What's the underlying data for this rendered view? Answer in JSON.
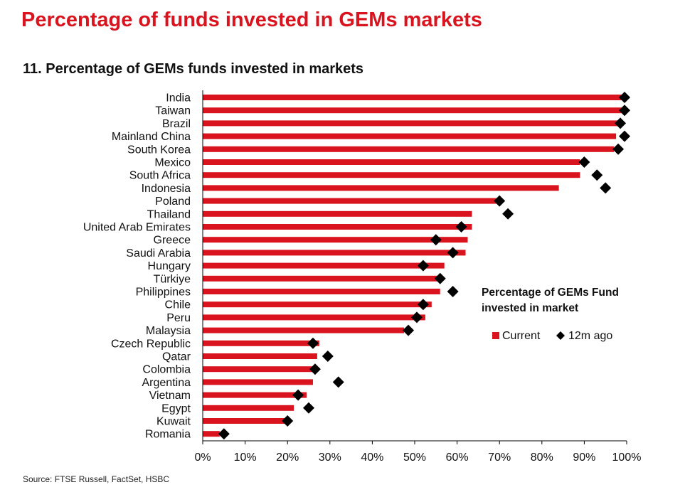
{
  "page_title": "Percentage of funds invested in GEMs markets",
  "source": "Source: FTSE Russell, FactSet, HSBC",
  "colors": {
    "accent": "#d9141e",
    "marker": "#000000"
  },
  "chart_data": {
    "type": "bar",
    "orientation": "horizontal",
    "title": "11. Percentage of GEMs funds invested in markets",
    "categories": [
      "India",
      "Taiwan",
      "Brazil",
      "Mainland China",
      "South Korea",
      "Mexico",
      "South Africa",
      "Indonesia",
      "Poland",
      "Thailand",
      "United Arab Emirates",
      "Greece",
      "Saudi Arabia",
      "Hungary",
      "Türkiye",
      "Philippines",
      "Chile",
      "Peru",
      "Malaysia",
      "Czech Republic",
      "Qatar",
      "Colombia",
      "Argentina",
      "Vietnam",
      "Egypt",
      "Kuwait",
      "Romania"
    ],
    "series": [
      {
        "name": "Current",
        "type": "bar",
        "color": "#d9141e",
        "values": [
          100,
          100,
          98,
          97.5,
          97,
          89,
          89,
          84,
          70,
          63.5,
          63.5,
          62.5,
          62,
          57,
          56,
          56,
          54,
          52.5,
          47.5,
          27.5,
          27,
          26.5,
          26,
          24.5,
          21.5,
          20,
          4
        ]
      },
      {
        "name": "12m ago",
        "type": "marker",
        "color": "#000000",
        "values": [
          99.5,
          99.5,
          98.5,
          99.5,
          98,
          90,
          93,
          95,
          70,
          72,
          61,
          55,
          59,
          52,
          56,
          59,
          52,
          50.5,
          48.5,
          26,
          29.5,
          26.5,
          32,
          22.5,
          25,
          20,
          5
        ]
      }
    ],
    "xlim": [
      0,
      100
    ],
    "xticks": [
      "0%",
      "10%",
      "20%",
      "30%",
      "40%",
      "50%",
      "60%",
      "70%",
      "80%",
      "90%",
      "100%"
    ],
    "legend": {
      "title_lines": [
        "Percentage of GEMs Fund",
        "invested in market"
      ],
      "items": [
        "Current",
        "12m ago"
      ],
      "position": "right-center"
    }
  }
}
